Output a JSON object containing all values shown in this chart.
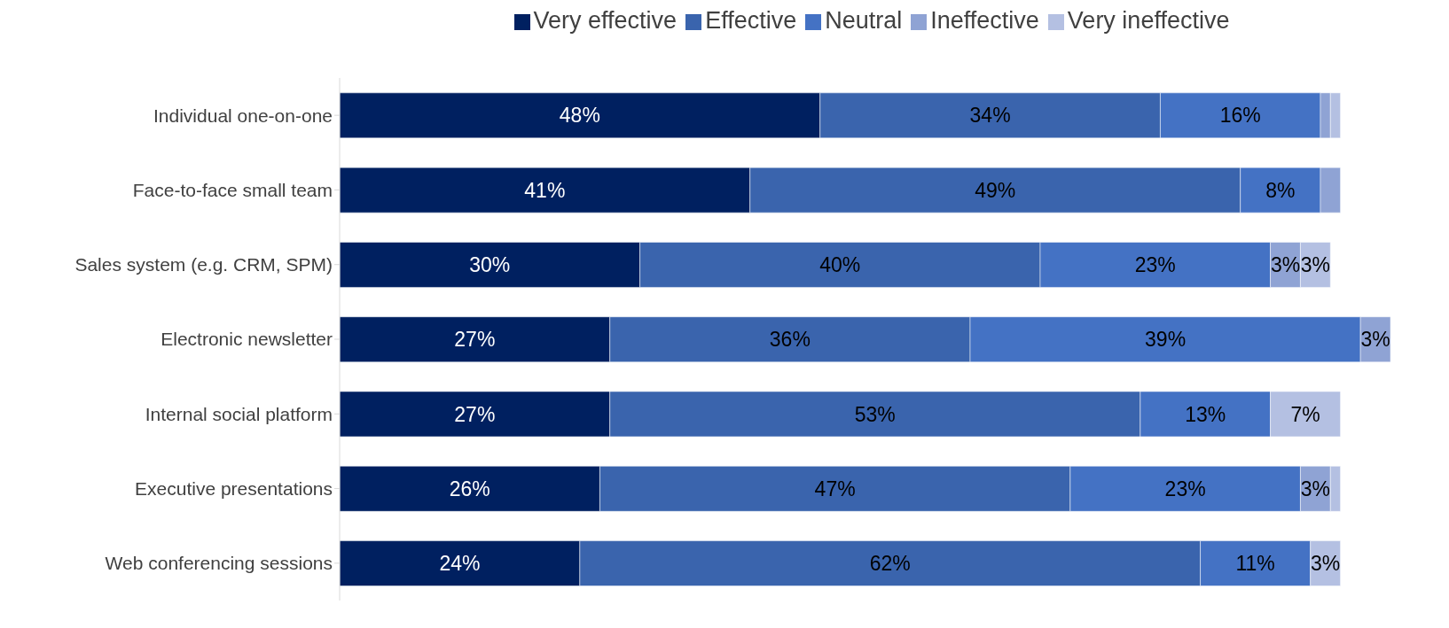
{
  "chart_data": {
    "type": "bar",
    "orientation": "horizontal",
    "stacked": true,
    "legend": "top",
    "grid": false,
    "categories": [
      "Individual one-on-one",
      "Face-to-face small team",
      "Sales system (e.g. CRM, SPM)",
      "Electronic newsletter",
      "Internal social platform",
      "Executive presentations",
      "Web conferencing sessions"
    ],
    "series": [
      {
        "name": "Very effective",
        "color": "#002060",
        "values": [
          48,
          41,
          30,
          27,
          27,
          26,
          24
        ],
        "value_labels": [
          "48%",
          "41%",
          "30%",
          "27%",
          "27%",
          "26%",
          "24%"
        ]
      },
      {
        "name": "Effective",
        "color": "#3a64ad",
        "values": [
          34,
          49,
          40,
          36,
          53,
          47,
          62
        ],
        "value_labels": [
          "34%",
          "49%",
          "40%",
          "36%",
          "53%",
          "47%",
          "62%"
        ]
      },
      {
        "name": "Neutral",
        "color": "#4472c4",
        "values": [
          16,
          8,
          23,
          39,
          13,
          23,
          11
        ],
        "value_labels": [
          "16%",
          "8%",
          "23%",
          "39%",
          "13%",
          "23%",
          "11%"
        ]
      },
      {
        "name": "Ineffective",
        "color": "#8fa3d4",
        "values": [
          1,
          2,
          3,
          3,
          0,
          3,
          0
        ],
        "value_labels": [
          null,
          null,
          "3%",
          "3%",
          null,
          "3%",
          null
        ]
      },
      {
        "name": "Very ineffective",
        "color": "#b4c0e2",
        "values": [
          1,
          0,
          3,
          0,
          7,
          1,
          3
        ],
        "value_labels": [
          null,
          null,
          "3%",
          null,
          "7%",
          null,
          "3%"
        ]
      }
    ]
  }
}
